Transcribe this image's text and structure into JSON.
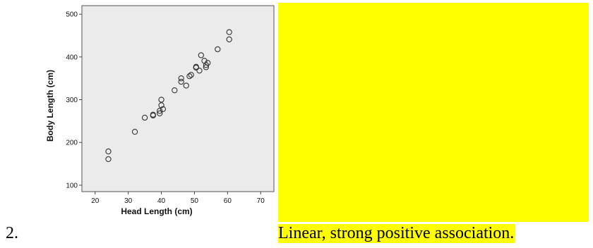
{
  "item_number": "2.",
  "answer": "Linear, strong positive association.",
  "colors": {
    "highlight": "#ffff00",
    "plot_bg": "#ebebeb",
    "marker": "#333333"
  },
  "chart_data": {
    "type": "scatter",
    "title": "",
    "xlabel": "Head Length (cm)",
    "ylabel": "Body Length (cm)",
    "xlim": [
      16,
      74
    ],
    "ylim": [
      85,
      520
    ],
    "xticks": [
      20,
      30,
      40,
      50,
      60,
      70
    ],
    "yticks": [
      100,
      200,
      300,
      400,
      500
    ],
    "grid": false,
    "marker": "open-circle",
    "points": [
      {
        "x": 24,
        "y": 179
      },
      {
        "x": 24,
        "y": 161
      },
      {
        "x": 32,
        "y": 225
      },
      {
        "x": 35,
        "y": 258
      },
      {
        "x": 37.5,
        "y": 263
      },
      {
        "x": 37.5,
        "y": 265
      },
      {
        "x": 39.5,
        "y": 268
      },
      {
        "x": 39.5,
        "y": 274
      },
      {
        "x": 40,
        "y": 287
      },
      {
        "x": 40,
        "y": 300
      },
      {
        "x": 40.5,
        "y": 278
      },
      {
        "x": 44,
        "y": 322
      },
      {
        "x": 46,
        "y": 342
      },
      {
        "x": 46,
        "y": 350
      },
      {
        "x": 47.5,
        "y": 333
      },
      {
        "x": 48.5,
        "y": 355
      },
      {
        "x": 49,
        "y": 358
      },
      {
        "x": 50.5,
        "y": 377
      },
      {
        "x": 50.5,
        "y": 375
      },
      {
        "x": 51.5,
        "y": 368
      },
      {
        "x": 52,
        "y": 404
      },
      {
        "x": 53,
        "y": 391
      },
      {
        "x": 53.5,
        "y": 376
      },
      {
        "x": 53.5,
        "y": 381
      },
      {
        "x": 54,
        "y": 386
      },
      {
        "x": 57,
        "y": 418
      },
      {
        "x": 60.5,
        "y": 458
      },
      {
        "x": 60.5,
        "y": 441
      }
    ]
  }
}
